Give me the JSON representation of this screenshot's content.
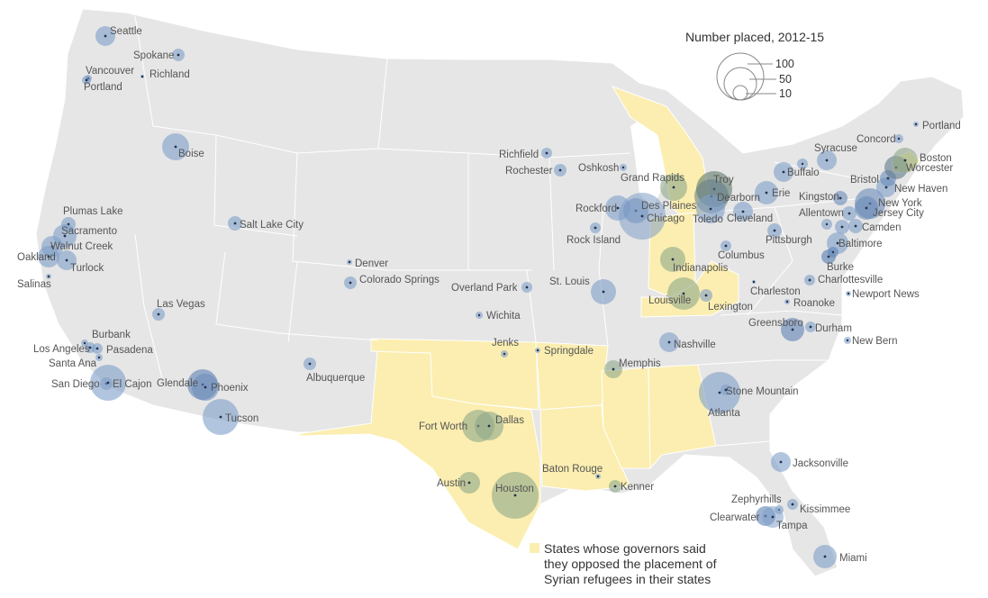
{
  "legend": {
    "title": "Number placed, 2012-15",
    "values": [
      "100",
      "50",
      "10"
    ]
  },
  "note": {
    "lines": [
      "States whose governors said",
      "they opposed the placement of",
      "Syrian refugees in their states"
    ]
  },
  "colors": {
    "land": "#e8e8e8",
    "state_border": "#ffffff",
    "opposed_states": "#fbeeb0",
    "bubble": "#7f9fc8",
    "bubble_over_opposed": "#8fa98a",
    "dot": "#22334d",
    "label": "#555555"
  },
  "opposed_states_named": [
    "Texas",
    "Oklahoma",
    "Arkansas",
    "Louisiana",
    "Mississippi",
    "Alabama",
    "Michigan",
    "Indiana",
    "Kentucky",
    "Massachusetts"
  ],
  "cities": [
    {
      "name": "Seattle",
      "size": 11
    },
    {
      "name": "Spokane",
      "size": 7
    },
    {
      "name": "Vancouver",
      "size": 4
    },
    {
      "name": "Portland",
      "size": 5
    },
    {
      "name": "Richland",
      "size": 2
    },
    {
      "name": "Boise",
      "size": 15
    },
    {
      "name": "Salt Lake City",
      "size": 8
    },
    {
      "name": "Plumas Lake",
      "size": 8
    },
    {
      "name": "Sacramento",
      "size": 13
    },
    {
      "name": "Walnut Creek",
      "size": 12
    },
    {
      "name": "Oakland",
      "size": 12
    },
    {
      "name": "Turlock",
      "size": 11
    },
    {
      "name": "Salinas",
      "size": 3
    },
    {
      "name": "Las Vegas",
      "size": 7
    },
    {
      "name": "Burbank",
      "size": 4
    },
    {
      "name": "Los Angeles",
      "size": 6
    },
    {
      "name": "Pasadena",
      "size": 6
    },
    {
      "name": "Santa Ana",
      "size": 4
    },
    {
      "name": "San Diego",
      "size": 7
    },
    {
      "name": "El Cajon",
      "size": 20
    },
    {
      "name": "Glendale",
      "size": 17
    },
    {
      "name": "Phoenix",
      "size": 15
    },
    {
      "name": "Tucson",
      "size": 20
    },
    {
      "name": "Albuquerque",
      "size": 7
    },
    {
      "name": "Denver",
      "size": 3
    },
    {
      "name": "Colorado Springs",
      "size": 7
    },
    {
      "name": "Richfield",
      "size": 6
    },
    {
      "name": "Rochester",
      "size": 7
    },
    {
      "name": "Oshkosh",
      "size": 4
    },
    {
      "name": "Overland Park",
      "size": 6
    },
    {
      "name": "Wichita",
      "size": 4
    },
    {
      "name": "Jenks",
      "size": 4
    },
    {
      "name": "Springdale",
      "size": 3
    },
    {
      "name": "Fort Worth",
      "size": 18
    },
    {
      "name": "Dallas",
      "size": 16
    },
    {
      "name": "Austin",
      "size": 12
    },
    {
      "name": "Houston",
      "size": 26
    },
    {
      "name": "Baton Rouge",
      "size": 3
    },
    {
      "name": "Kenner",
      "size": 7
    },
    {
      "name": "Memphis",
      "size": 10
    },
    {
      "name": "St. Louis",
      "size": 14
    },
    {
      "name": "Rock Island",
      "size": 6
    },
    {
      "name": "Rockford",
      "size": 14
    },
    {
      "name": "Des Plaines",
      "size": 14
    },
    {
      "name": "Chicago",
      "size": 26
    },
    {
      "name": "Grand Rapids",
      "size": 15
    },
    {
      "name": "Troy",
      "size": 20
    },
    {
      "name": "Dearborn",
      "size": 19
    },
    {
      "name": "Toledo",
      "size": 16
    },
    {
      "name": "Cleveland",
      "size": 11
    },
    {
      "name": "Erie",
      "size": 13
    },
    {
      "name": "Buffalo",
      "size": 11
    },
    {
      "name": "Syracuse",
      "size": 11
    },
    {
      "name": "Indianapolis",
      "size": 14
    },
    {
      "name": "Louisville",
      "size": 18
    },
    {
      "name": "Lexington",
      "size": 7
    },
    {
      "name": "Columbus",
      "size": 6
    },
    {
      "name": "Pittsburgh",
      "size": 8
    },
    {
      "name": "Nashville",
      "size": 11
    },
    {
      "name": "Charleston",
      "size": 2
    },
    {
      "name": "Roanoke",
      "size": 3
    },
    {
      "name": "Charlottesville",
      "size": 6
    },
    {
      "name": "Greensboro",
      "size": 13
    },
    {
      "name": "Durham",
      "size": 6
    },
    {
      "name": "Newport News",
      "size": 3
    },
    {
      "name": "New Bern",
      "size": 4
    },
    {
      "name": "Atlanta",
      "size": 23
    },
    {
      "name": "Stone Mountain",
      "size": 6
    },
    {
      "name": "Jacksonville",
      "size": 11
    },
    {
      "name": "Zephyrhills",
      "size": 5
    },
    {
      "name": "Kissimmee",
      "size": 6
    },
    {
      "name": "Clearwater",
      "size": 11
    },
    {
      "name": "Tampa",
      "size": 12
    },
    {
      "name": "Miami",
      "size": 13
    },
    {
      "name": "Baltimore",
      "size": 12
    },
    {
      "name": "Burke",
      "size": 8
    },
    {
      "name": "Allentown",
      "size": 8
    },
    {
      "name": "Camden",
      "size": 8
    },
    {
      "name": "Kingston",
      "size": 8
    },
    {
      "name": "New York",
      "size": 17
    },
    {
      "name": "Jersey City",
      "size": 13
    },
    {
      "name": "New Haven",
      "size": 11
    },
    {
      "name": "Bristol",
      "size": 9
    },
    {
      "name": "Worcester",
      "size": 13
    },
    {
      "name": "Boston",
      "size": 14
    },
    {
      "name": "Concord",
      "size": 5
    },
    {
      "name": "Portland",
      "size": 3
    }
  ]
}
